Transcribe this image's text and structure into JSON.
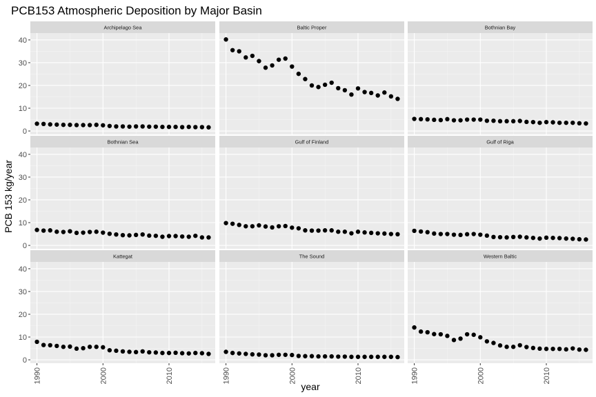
{
  "chart_data": {
    "type": "scatter",
    "title": "PCB153 Atmospheric Deposition by Major Basin",
    "xlabel": "year",
    "ylabel": "PCB 153 kg/year",
    "xlim": [
      1989,
      2017
    ],
    "ylim": [
      -1.5,
      43
    ],
    "x_ticks": [
      1990,
      2000,
      2010
    ],
    "y_ticks": [
      0,
      10,
      20,
      30,
      40
    ],
    "grid": true,
    "layout": "3x3 facets",
    "x": [
      1990,
      1991,
      1992,
      1993,
      1994,
      1995,
      1996,
      1997,
      1998,
      1999,
      2000,
      2001,
      2002,
      2003,
      2004,
      2005,
      2006,
      2007,
      2008,
      2009,
      2010,
      2011,
      2012,
      2013,
      2014,
      2015,
      2016
    ],
    "panels": [
      {
        "name": "Archipelago Sea",
        "values": [
          3.2,
          3.1,
          2.9,
          2.8,
          2.7,
          2.7,
          2.6,
          2.6,
          2.6,
          2.7,
          2.5,
          2.2,
          2.0,
          2.0,
          1.9,
          2.0,
          2.0,
          1.9,
          1.9,
          1.8,
          1.8,
          1.8,
          1.7,
          1.8,
          1.7,
          1.7,
          1.6
        ]
      },
      {
        "name": "Baltic Proper",
        "values": [
          40.2,
          35.5,
          35.0,
          32.3,
          33.0,
          30.7,
          27.8,
          28.8,
          31.3,
          31.8,
          28.3,
          25.1,
          22.8,
          20.0,
          19.3,
          20.3,
          21.2,
          18.8,
          17.9,
          16.0,
          18.7,
          17.1,
          16.7,
          15.6,
          16.9,
          15.2,
          14.1
        ]
      },
      {
        "name": "Bothnian Bay",
        "values": [
          5.3,
          5.2,
          5.1,
          4.9,
          4.8,
          5.2,
          4.7,
          4.7,
          5.0,
          5.0,
          5.0,
          4.5,
          4.5,
          4.3,
          4.3,
          4.3,
          4.4,
          4.0,
          3.9,
          3.6,
          3.9,
          3.8,
          3.6,
          3.6,
          3.6,
          3.4,
          3.3
        ]
      },
      {
        "name": "Bothnian Sea",
        "values": [
          6.8,
          6.5,
          6.6,
          6.0,
          5.9,
          6.2,
          5.5,
          5.6,
          5.9,
          6.0,
          5.6,
          5.1,
          4.8,
          4.5,
          4.4,
          4.6,
          4.8,
          4.3,
          4.2,
          3.8,
          4.1,
          4.1,
          3.9,
          3.8,
          4.2,
          3.5,
          3.5
        ]
      },
      {
        "name": "Gulf of Finland",
        "values": [
          9.8,
          9.5,
          9.0,
          8.4,
          8.4,
          8.8,
          8.3,
          7.9,
          8.4,
          8.5,
          7.8,
          7.5,
          6.6,
          6.5,
          6.5,
          6.6,
          6.6,
          6.0,
          6.0,
          5.3,
          6.0,
          5.7,
          5.5,
          5.3,
          5.2,
          5.0,
          4.9
        ]
      },
      {
        "name": "Gulf of Riga",
        "values": [
          6.4,
          6.1,
          5.8,
          5.2,
          5.0,
          5.0,
          4.7,
          4.6,
          4.9,
          5.0,
          4.7,
          4.3,
          3.7,
          3.6,
          3.5,
          3.7,
          3.8,
          3.5,
          3.3,
          3.0,
          3.4,
          3.3,
          3.2,
          3.0,
          2.9,
          2.7,
          2.6
        ]
      },
      {
        "name": "Kattegat",
        "values": [
          7.9,
          6.5,
          6.4,
          6.1,
          5.7,
          5.8,
          4.9,
          5.1,
          5.7,
          5.7,
          5.5,
          4.2,
          4.0,
          3.7,
          3.5,
          3.4,
          3.7,
          3.3,
          3.2,
          3.0,
          3.0,
          3.1,
          2.9,
          2.8,
          3.0,
          2.9,
          2.6
        ]
      },
      {
        "name": "The Sound",
        "values": [
          3.5,
          3.0,
          2.8,
          2.6,
          2.4,
          2.3,
          2.0,
          2.0,
          2.2,
          2.2,
          2.1,
          1.7,
          1.6,
          1.6,
          1.5,
          1.5,
          1.5,
          1.4,
          1.4,
          1.3,
          1.3,
          1.3,
          1.3,
          1.3,
          1.3,
          1.3,
          1.2
        ]
      },
      {
        "name": "Western Baltic",
        "values": [
          14.2,
          12.4,
          12.1,
          11.3,
          11.2,
          10.5,
          8.7,
          9.3,
          11.2,
          11.0,
          9.9,
          8.1,
          7.4,
          6.3,
          5.7,
          5.7,
          6.4,
          5.6,
          5.2,
          4.9,
          4.8,
          4.8,
          4.8,
          4.6,
          5.0,
          4.5,
          4.4
        ]
      }
    ]
  }
}
